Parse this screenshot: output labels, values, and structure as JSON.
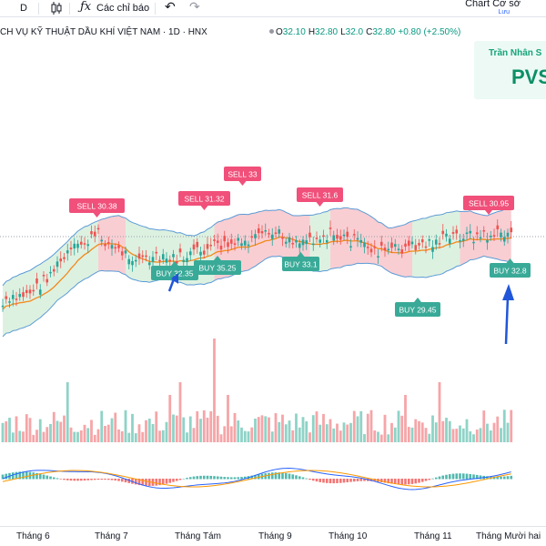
{
  "toolbar": {
    "interval": "D",
    "indicators_label": "Các chỉ báo",
    "layout_name": "Chart Cơ sở",
    "save_label": "Lưu"
  },
  "legend": {
    "title": "CH VỤ KỸ THUẬT DẦU KHÍ VIỆT NAM · 1D · HNX",
    "open_label": "O",
    "open": "32.10",
    "high_label": "H",
    "high": "32.80",
    "low_label": "L",
    "low": "32.0",
    "close_label": "C",
    "close": "32.80",
    "change": "+0.80 (+2.50%)"
  },
  "watermark": {
    "name": "Trần Nhân S",
    "ticker": "PVS"
  },
  "signals": [
    {
      "type": "sell",
      "text": "SELL 30.38"
    },
    {
      "type": "sell",
      "text": "SELL 31.32"
    },
    {
      "type": "sell",
      "text": "SELL 33"
    },
    {
      "type": "sell",
      "text": "SELL 31.6"
    },
    {
      "type": "sell",
      "text": "SELL 30.95"
    },
    {
      "type": "buy",
      "text": "BUY 32.35"
    },
    {
      "type": "buy",
      "text": "BUY 35.25"
    },
    {
      "type": "buy",
      "text": "BUY 33.1"
    },
    {
      "type": "buy",
      "text": "BUY 29.45"
    },
    {
      "type": "buy",
      "text": "BUY 32.8"
    }
  ],
  "xaxis": {
    "ticks": [
      "Tháng 6",
      "Tháng 7",
      "Tháng Tám",
      "Tháng 9",
      "Tháng 10",
      "Tháng 11",
      "Tháng Mười hai"
    ]
  },
  "colors": {
    "up": "#26a69a",
    "down": "#ef5350",
    "sell_label": "#f0507a",
    "buy_label": "#3aaa98",
    "band_up_fill": "#d7efdc",
    "band_down_fill": "#f7c6cb",
    "band_line": "#5b9bd5",
    "ma_line": "#f28a1c",
    "arrow": "#2156d9"
  },
  "icons": [
    "candles-icon",
    "fx-icon",
    "undo-icon",
    "redo-icon"
  ]
}
